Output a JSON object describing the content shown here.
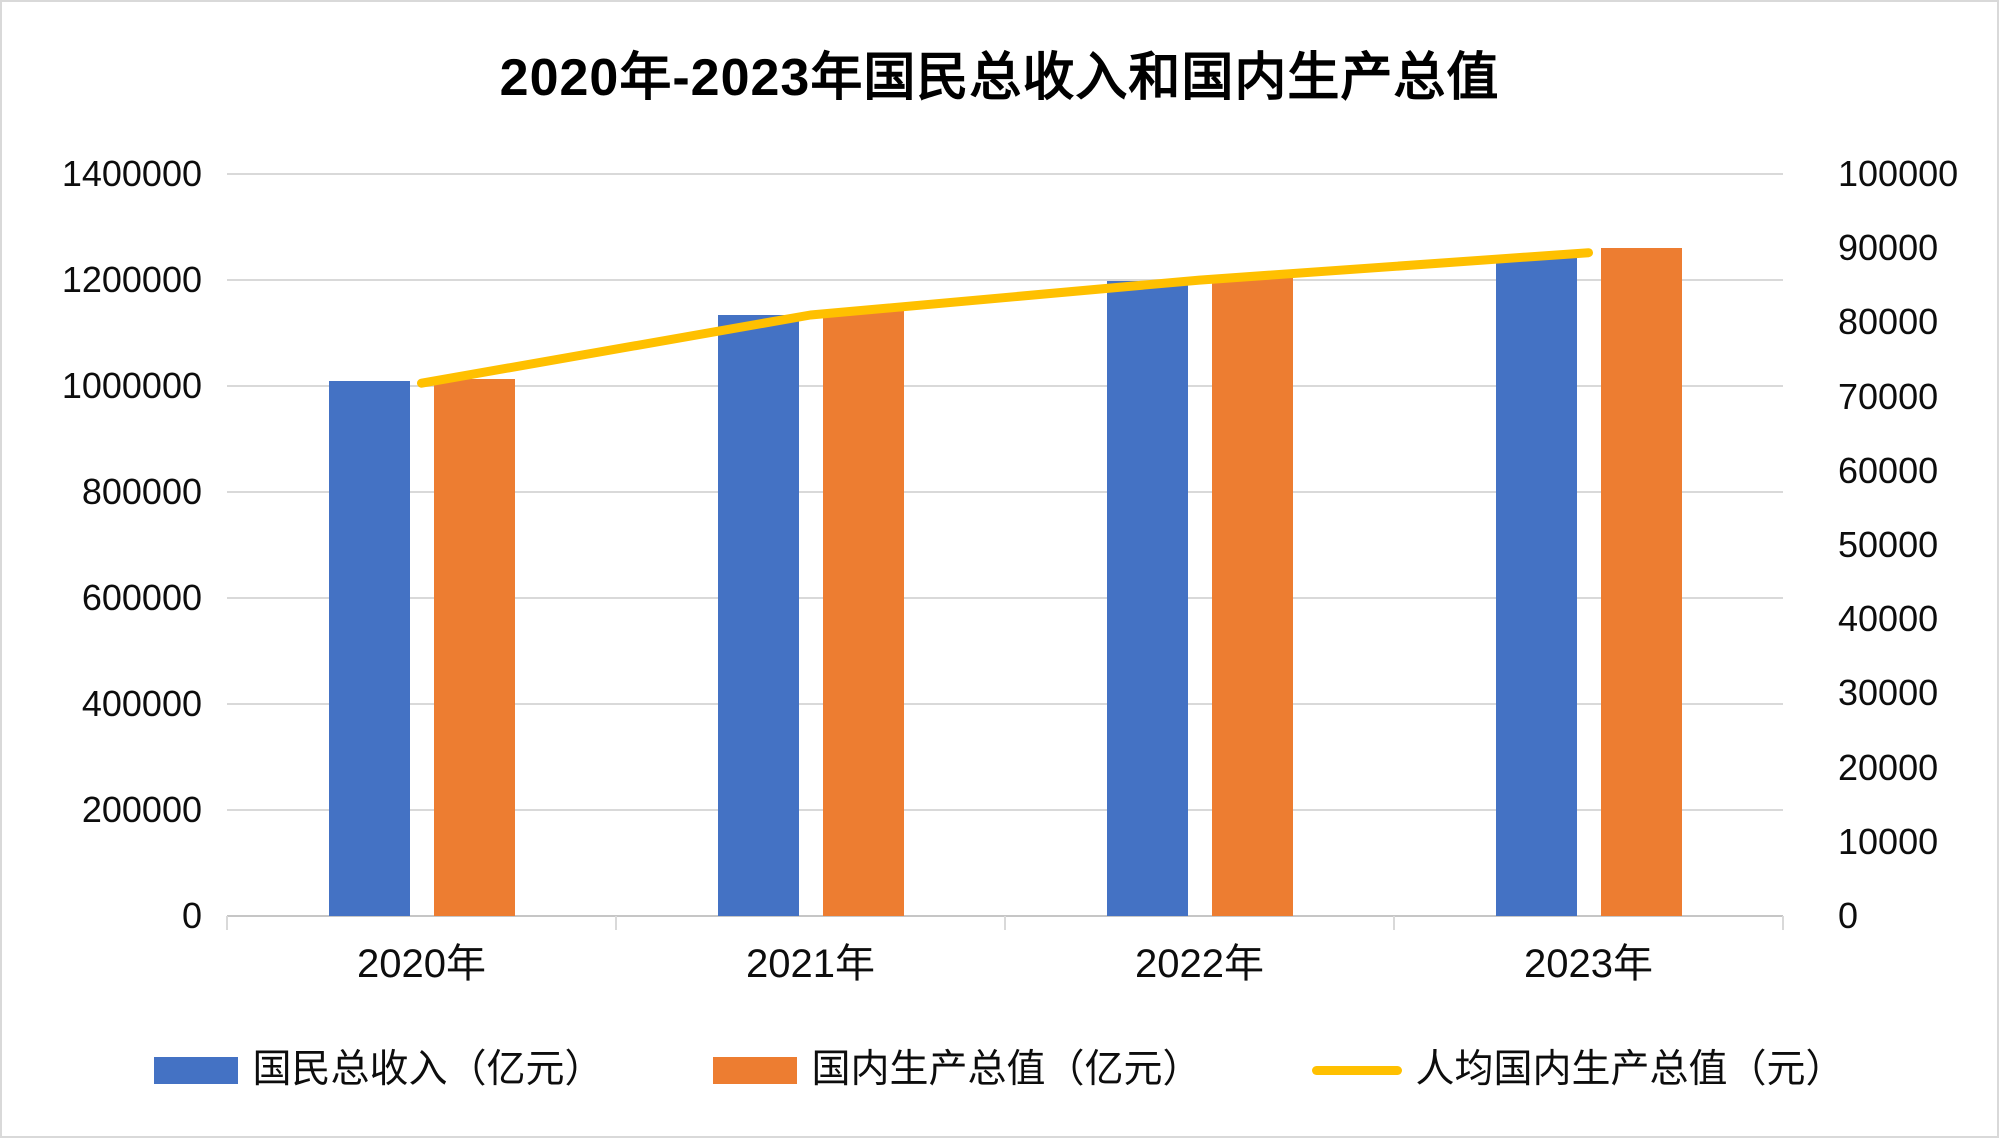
{
  "chart_data": {
    "type": "combo_bar_line",
    "title": "2020年-2023年国民总收入和国内生产总值",
    "categories": [
      "2020年",
      "2021年",
      "2022年",
      "2023年"
    ],
    "series": [
      {
        "name": "国民总收入（亿元）",
        "slug": "gni",
        "kind": "bar",
        "axis": "left",
        "color": "#4472C4",
        "values": [
          1008700,
          1133500,
          1197200,
          1245000
        ]
      },
      {
        "name": "国内生产总值（亿元）",
        "slug": "gdp",
        "kind": "bar",
        "axis": "left",
        "color": "#ED7D31",
        "values": [
          1013600,
          1143700,
          1210200,
          1260600
        ]
      },
      {
        "name": "人均国内生产总值（元）",
        "slug": "per-capita-gdp",
        "kind": "line",
        "axis": "right",
        "color": "#FFC000",
        "values": [
          71800,
          81000,
          85700,
          89400
        ]
      }
    ],
    "left_axis": {
      "min": 0,
      "max": 1400000,
      "step": 200000,
      "tick_labels": [
        "0",
        "200000",
        "400000",
        "600000",
        "800000",
        "1000000",
        "1200000",
        "1400000"
      ]
    },
    "right_axis": {
      "min": 0,
      "max": 100000,
      "step": 10000,
      "tick_labels": [
        "0",
        "10000",
        "20000",
        "30000",
        "40000",
        "50000",
        "60000",
        "70000",
        "80000",
        "90000",
        "100000"
      ]
    },
    "grid": true,
    "legend_position": "bottom",
    "background": "#FFFFFF",
    "gridline_color": "#D9D9D9"
  }
}
